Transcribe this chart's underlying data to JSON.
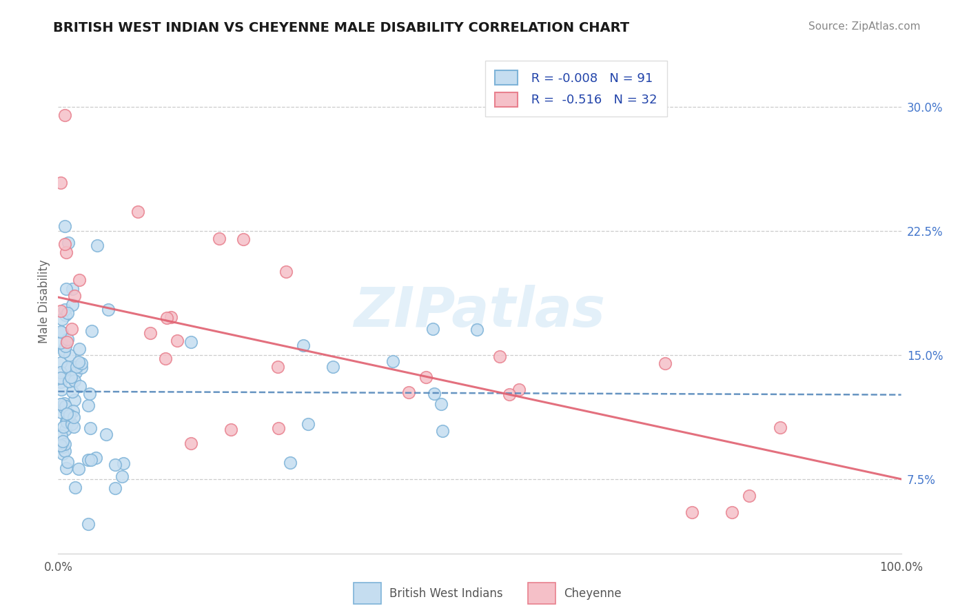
{
  "title": "BRITISH WEST INDIAN VS CHEYENNE MALE DISABILITY CORRELATION CHART",
  "source": "Source: ZipAtlas.com",
  "ylabel": "Male Disability",
  "y_ticks": [
    0.075,
    0.15,
    0.225,
    0.3
  ],
  "y_tick_labels": [
    "7.5%",
    "15.0%",
    "22.5%",
    "30.0%"
  ],
  "xlim": [
    0.0,
    1.0
  ],
  "ylim": [
    0.03,
    0.335
  ],
  "color_blue": "#7eb3d8",
  "color_blue_fill": "#c5ddf0",
  "color_pink": "#e8808e",
  "color_pink_fill": "#f5c0c8",
  "color_blue_line": "#5588bb",
  "color_pink_line": "#e06070",
  "title_color": "#1a1a1a",
  "source_color": "#888888",
  "blue_trend_x": [
    0.0,
    1.0
  ],
  "blue_trend_y": [
    0.128,
    0.126
  ],
  "pink_trend_x": [
    0.0,
    1.0
  ],
  "pink_trend_y": [
    0.185,
    0.075
  ]
}
